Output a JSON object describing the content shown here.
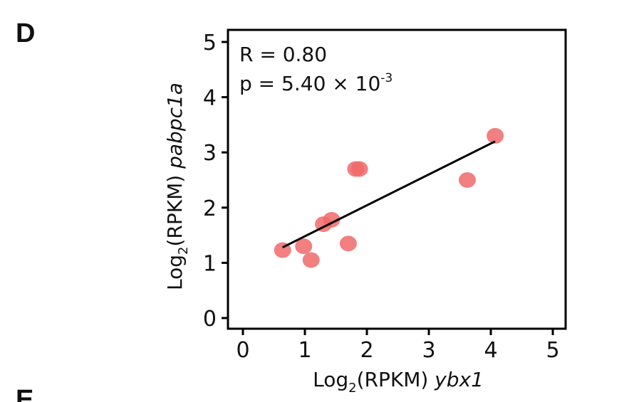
{
  "panels": {
    "current": "D",
    "next": "E"
  },
  "chart_data": {
    "type": "scatter",
    "x": [
      0.64,
      0.98,
      1.1,
      1.3,
      1.43,
      1.7,
      1.82,
      1.88,
      3.62,
      4.07
    ],
    "y": [
      1.23,
      1.3,
      1.05,
      1.7,
      1.78,
      1.35,
      2.7,
      2.7,
      2.5,
      3.3
    ],
    "point_color": "#f06a6a",
    "regression": {
      "x": [
        0.64,
        4.07
      ],
      "y": [
        1.28,
        3.2
      ],
      "color": "#000000"
    },
    "xlim": [
      0,
      5
    ],
    "ylim": [
      0,
      5
    ],
    "xticks": [
      0,
      1,
      2,
      3,
      4,
      5
    ],
    "yticks": [
      0,
      1,
      2,
      3,
      4,
      5
    ],
    "xlabel": {
      "prefix": "Log",
      "sub": "2",
      "mid": "(RPKM) ",
      "gene": "ybx1"
    },
    "ylabel": {
      "prefix": "Log",
      "sub": "2",
      "mid": "(RPKM) ",
      "gene": "pabpc1a"
    },
    "annotation": {
      "r_text": "R = 0.80",
      "p_text": "p = 5.40 × 10",
      "p_exp": "-3"
    }
  }
}
